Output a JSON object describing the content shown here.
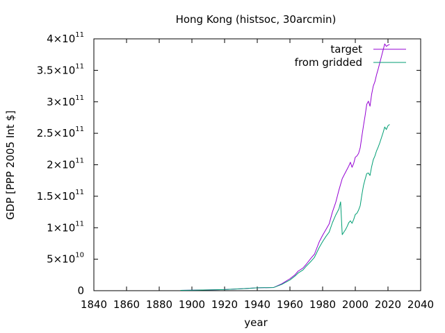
{
  "chart_data": {
    "type": "line",
    "title": "Hong Kong (histsoc, 30arcmin)",
    "xlabel": "year",
    "ylabel": "GDP [PPP 2005 Int $]",
    "xlim": [
      1840,
      2040
    ],
    "ylim": [
      0,
      400000000000
    ],
    "grid": false,
    "legend_position": "top-right",
    "x_ticks": [
      "1840",
      "1860",
      "1880",
      "1900",
      "1920",
      "1940",
      "1960",
      "1980",
      "2000",
      "2020",
      "2040"
    ],
    "y_ticks": [
      {
        "value": 0,
        "mantissa": "0",
        "exponent": ""
      },
      {
        "value": 50000000000,
        "mantissa": "5×10",
        "exponent": "10"
      },
      {
        "value": 100000000000,
        "mantissa": "1×10",
        "exponent": "11"
      },
      {
        "value": 150000000000,
        "mantissa": "1.5×10",
        "exponent": "11"
      },
      {
        "value": 200000000000,
        "mantissa": "2×10",
        "exponent": "11"
      },
      {
        "value": 250000000000,
        "mantissa": "2.5×10",
        "exponent": "11"
      },
      {
        "value": 300000000000,
        "mantissa": "3×10",
        "exponent": "11"
      },
      {
        "value": 350000000000,
        "mantissa": "3.5×10",
        "exponent": "11"
      },
      {
        "value": 400000000000,
        "mantissa": "4×10",
        "exponent": "11"
      }
    ],
    "series": [
      {
        "name": "target",
        "color": "#9400d3",
        "points": [
          [
            1893,
            500000000
          ],
          [
            1900,
            800000000
          ],
          [
            1910,
            1200000000
          ],
          [
            1920,
            1800000000
          ],
          [
            1930,
            3000000000
          ],
          [
            1940,
            4500000000
          ],
          [
            1950,
            5000000000
          ],
          [
            1955,
            11000000000
          ],
          [
            1960,
            19000000000
          ],
          [
            1963,
            25000000000
          ],
          [
            1965,
            31000000000
          ],
          [
            1968,
            36000000000
          ],
          [
            1970,
            42000000000
          ],
          [
            1973,
            52000000000
          ],
          [
            1975,
            58000000000
          ],
          [
            1978,
            78000000000
          ],
          [
            1980,
            88000000000
          ],
          [
            1982,
            97000000000
          ],
          [
            1984,
            106000000000
          ],
          [
            1986,
            125000000000
          ],
          [
            1988,
            140000000000
          ],
          [
            1990,
            160000000000
          ],
          [
            1992,
            178000000000
          ],
          [
            1994,
            188000000000
          ],
          [
            1995,
            193000000000
          ],
          [
            1996,
            198000000000
          ],
          [
            1997,
            204000000000
          ],
          [
            1998,
            196000000000
          ],
          [
            1999,
            202000000000
          ],
          [
            2000,
            212000000000
          ],
          [
            2001,
            214000000000
          ],
          [
            2002,
            218000000000
          ],
          [
            2003,
            227000000000
          ],
          [
            2004,
            245000000000
          ],
          [
            2005,
            262000000000
          ],
          [
            2006,
            278000000000
          ],
          [
            2007,
            296000000000
          ],
          [
            2008,
            301000000000
          ],
          [
            2009,
            293000000000
          ],
          [
            2010,
            312000000000
          ],
          [
            2011,
            325000000000
          ],
          [
            2012,
            332000000000
          ],
          [
            2013,
            343000000000
          ],
          [
            2014,
            352000000000
          ],
          [
            2015,
            362000000000
          ],
          [
            2016,
            372000000000
          ],
          [
            2017,
            382000000000
          ],
          [
            2018,
            392000000000
          ],
          [
            2019,
            388000000000
          ],
          [
            2020,
            390000000000
          ],
          [
            2021,
            391000000000
          ]
        ]
      },
      {
        "name": "from gridded",
        "color": "#009e73",
        "points": [
          [
            1893,
            500000000
          ],
          [
            1900,
            800000000
          ],
          [
            1910,
            1200000000
          ],
          [
            1920,
            1800000000
          ],
          [
            1930,
            3000000000
          ],
          [
            1940,
            4500000000
          ],
          [
            1950,
            5000000000
          ],
          [
            1955,
            10000000000
          ],
          [
            1960,
            17000000000
          ],
          [
            1963,
            23000000000
          ],
          [
            1965,
            28000000000
          ],
          [
            1968,
            33000000000
          ],
          [
            1970,
            39000000000
          ],
          [
            1973,
            47000000000
          ],
          [
            1975,
            53000000000
          ],
          [
            1978,
            69000000000
          ],
          [
            1980,
            78000000000
          ],
          [
            1982,
            86000000000
          ],
          [
            1984,
            93000000000
          ],
          [
            1986,
            108000000000
          ],
          [
            1988,
            120000000000
          ],
          [
            1990,
            130000000000
          ],
          [
            1991,
            141000000000
          ],
          [
            1992,
            89000000000
          ],
          [
            1993,
            93000000000
          ],
          [
            1994,
            97000000000
          ],
          [
            1995,
            102000000000
          ],
          [
            1996,
            108000000000
          ],
          [
            1997,
            111000000000
          ],
          [
            1998,
            107000000000
          ],
          [
            1999,
            113000000000
          ],
          [
            2000,
            121000000000
          ],
          [
            2001,
            123000000000
          ],
          [
            2002,
            128000000000
          ],
          [
            2003,
            135000000000
          ],
          [
            2004,
            152000000000
          ],
          [
            2005,
            167000000000
          ],
          [
            2006,
            177000000000
          ],
          [
            2007,
            186000000000
          ],
          [
            2008,
            187000000000
          ],
          [
            2009,
            183000000000
          ],
          [
            2010,
            197000000000
          ],
          [
            2011,
            208000000000
          ],
          [
            2012,
            214000000000
          ],
          [
            2013,
            222000000000
          ],
          [
            2014,
            228000000000
          ],
          [
            2015,
            235000000000
          ],
          [
            2016,
            243000000000
          ],
          [
            2017,
            251000000000
          ],
          [
            2018,
            260000000000
          ],
          [
            2019,
            256000000000
          ],
          [
            2020,
            262000000000
          ],
          [
            2021,
            264000000000
          ]
        ]
      }
    ]
  }
}
